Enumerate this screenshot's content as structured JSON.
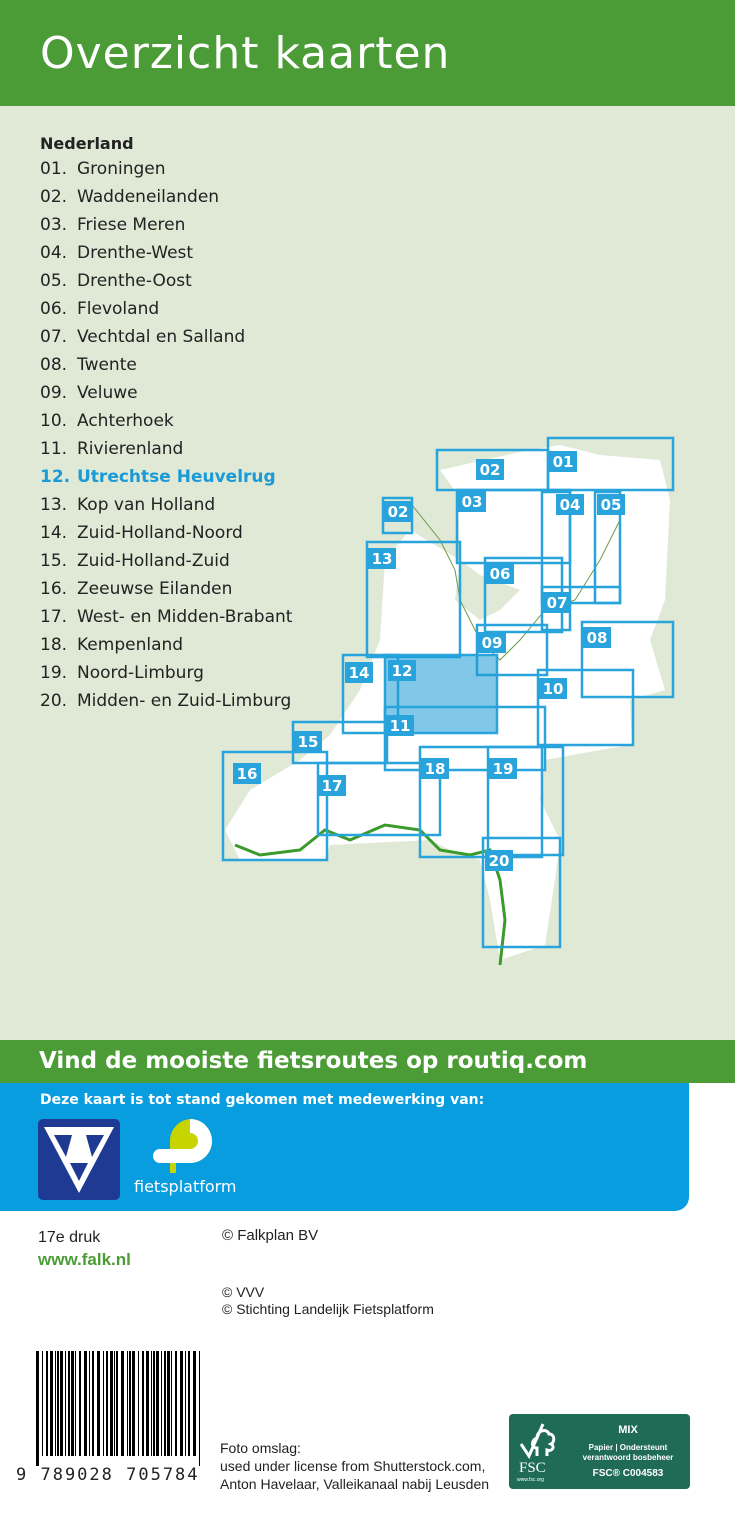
{
  "header": {
    "title": "Overzicht kaarten"
  },
  "list": {
    "heading": "Nederland",
    "active_index": 11,
    "items": [
      {
        "num": "01.",
        "name": "Groningen"
      },
      {
        "num": "02.",
        "name": "Waddeneilanden"
      },
      {
        "num": "03.",
        "name": "Friese Meren"
      },
      {
        "num": "04.",
        "name": "Drenthe-West"
      },
      {
        "num": "05.",
        "name": "Drenthe-Oost"
      },
      {
        "num": "06.",
        "name": "Flevoland"
      },
      {
        "num": "07.",
        "name": "Vechtdal en Salland"
      },
      {
        "num": "08.",
        "name": "Twente"
      },
      {
        "num": "09.",
        "name": "Veluwe"
      },
      {
        "num": "10.",
        "name": "Achterhoek"
      },
      {
        "num": "11.",
        "name": "Rivierenland"
      },
      {
        "num": "12.",
        "name": "Utrechtse Heuvelrug"
      },
      {
        "num": "13.",
        "name": "Kop van Holland"
      },
      {
        "num": "14.",
        "name": "Zuid-Holland-Noord"
      },
      {
        "num": "15.",
        "name": "Zuid-Holland-Zuid"
      },
      {
        "num": "16.",
        "name": "Zeeuwse Eilanden"
      },
      {
        "num": "17.",
        "name": "West- en Midden-Brabant"
      },
      {
        "num": "18.",
        "name": "Kempenland"
      },
      {
        "num": "19.",
        "name": "Noord-Limburg"
      },
      {
        "num": "20.",
        "name": "Midden- en Zuid-Limburg"
      }
    ]
  },
  "map": {
    "sheets": [
      "02",
      "01",
      "02",
      "03",
      "04",
      "05",
      "13",
      "06",
      "07",
      "08",
      "09",
      "10",
      "14",
      "12",
      "11",
      "15",
      "16",
      "17",
      "18",
      "19",
      "20"
    ],
    "highlighted": "12"
  },
  "colors": {
    "green": "#4b9c36",
    "blue": "#089ddf",
    "map_blue": "#29a3dc",
    "highlight": "#1a9ad6",
    "fsc": "#1f6b55"
  },
  "banner": {
    "text": "Vind de mooiste fietsroutes op routiq.com"
  },
  "partners": {
    "text": "Deze kaart is tot stand gekomen met medewerking van:",
    "vvv": "VVV",
    "fietsplatform": "fietsplatform"
  },
  "footer": {
    "edition": "17e druk",
    "website": "www.falk.nl",
    "copyright1": "© Falkplan BV",
    "copyright2": "©  VVV",
    "copyright3": "©  Stichting Landelijk Fietsplatform",
    "photo_label": "Foto omslag:",
    "photo_line1": "used under license from Shutterstock.com,",
    "photo_line2": "Anton Havelaar, Valleikanaal nabij Leusden",
    "isbn": "9 789028 705784"
  },
  "fsc": {
    "mix": "MIX",
    "line1": "Papier | Ondersteunt",
    "line2": "verantwoord bosbeheer",
    "code": "FSC® C004583",
    "brand": "FSC",
    "url": "www.fsc.org"
  }
}
